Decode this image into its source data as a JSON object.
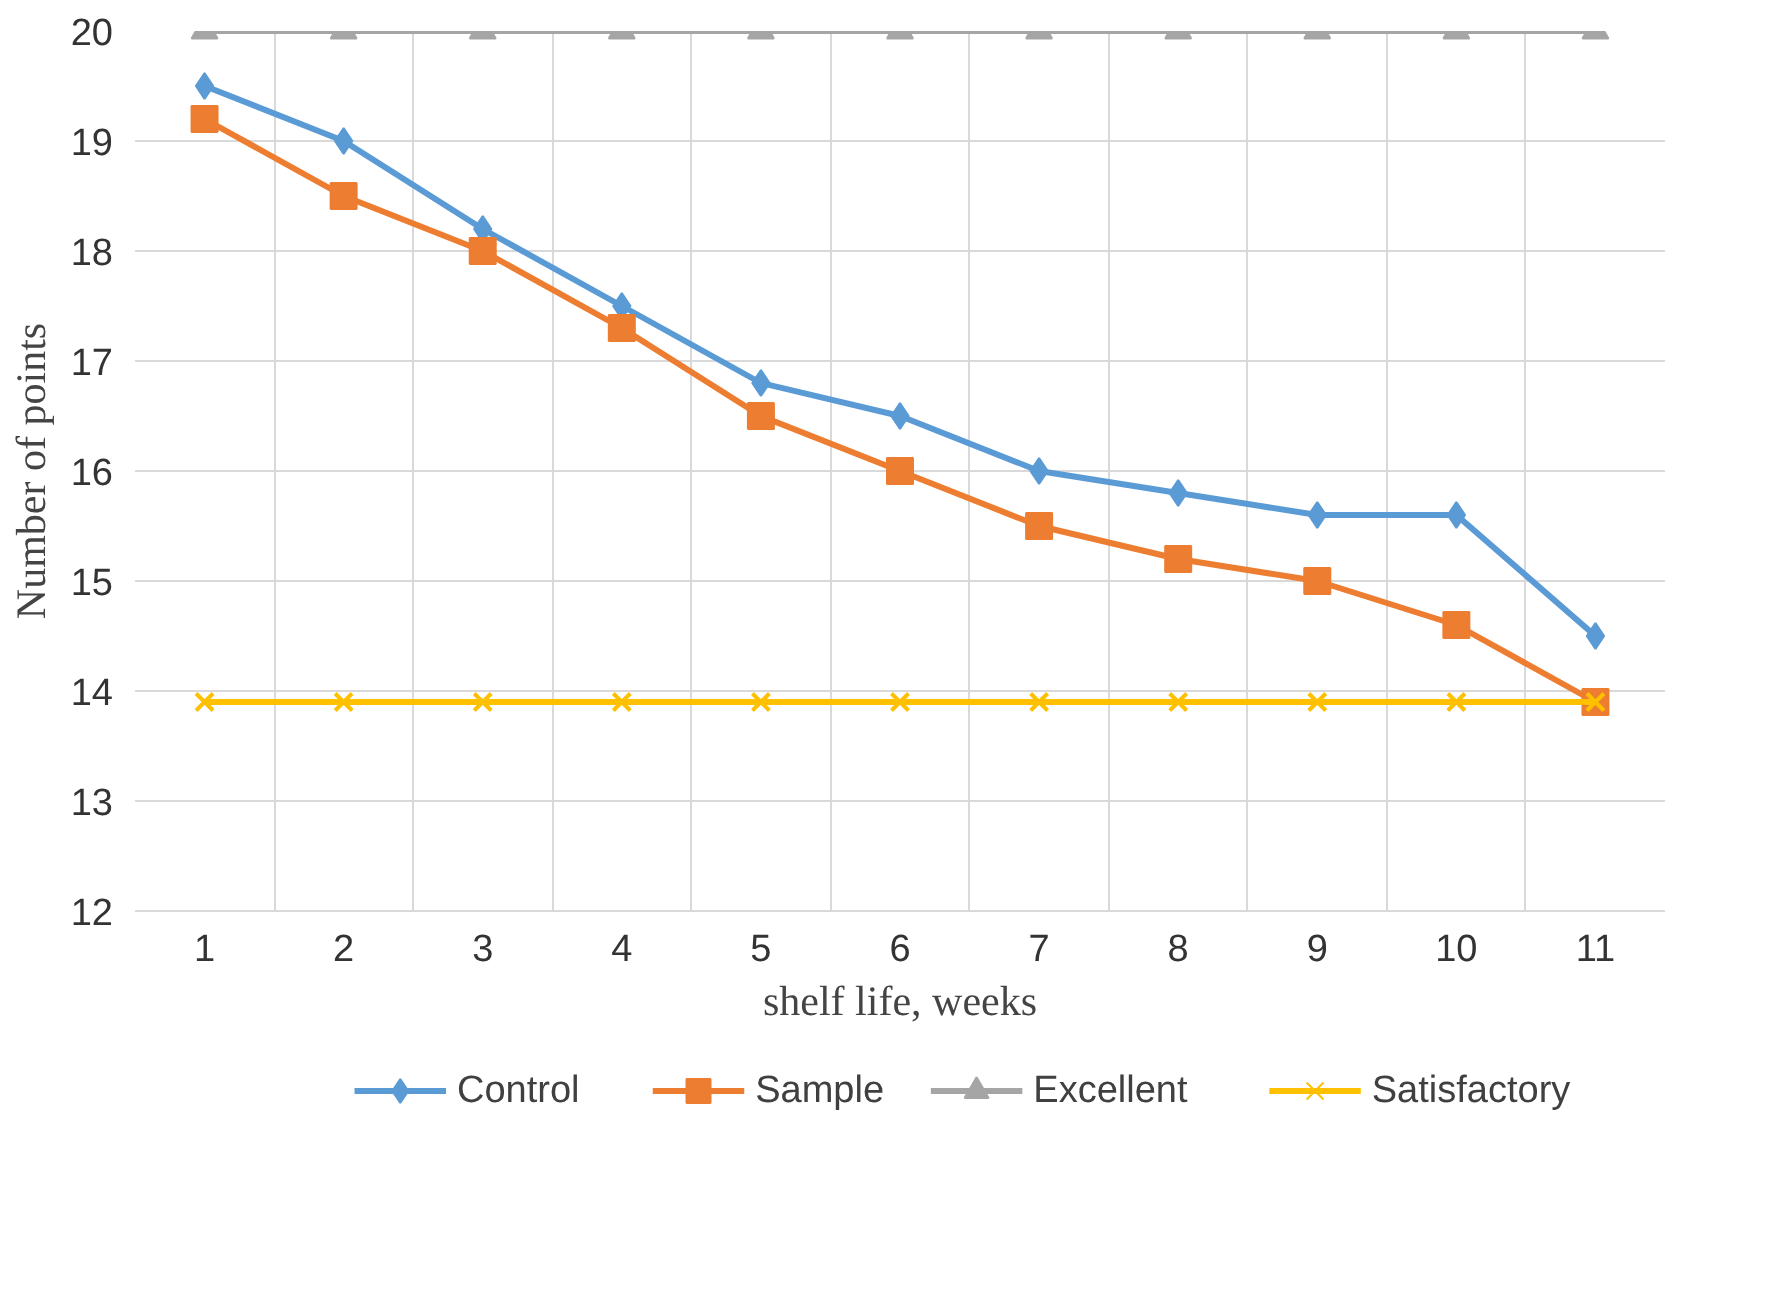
{
  "chart_data": {
    "type": "line",
    "xlabel": "shelf life, weeks",
    "ylabel": "Number of points",
    "categories": [
      "1",
      "2",
      "3",
      "4",
      "5",
      "6",
      "7",
      "8",
      "9",
      "10",
      "11"
    ],
    "series": [
      {
        "name": "Control",
        "color": "#5b9bd5",
        "marker": "diamond",
        "values": [
          19.5,
          19.0,
          18.2,
          17.5,
          16.8,
          16.5,
          16.0,
          15.8,
          15.6,
          15.6,
          14.5
        ]
      },
      {
        "name": "Sample",
        "color": "#ed7d31",
        "marker": "square",
        "values": [
          19.2,
          18.5,
          18.0,
          17.3,
          16.5,
          16.0,
          15.5,
          15.2,
          15.0,
          14.6,
          13.9
        ]
      },
      {
        "name": "Excellent",
        "color": "#a5a5a5",
        "marker": "triangle",
        "values": [
          20,
          20,
          20,
          20,
          20,
          20,
          20,
          20,
          20,
          20,
          20
        ]
      },
      {
        "name": "Satisfactory",
        "color": "#ffc000",
        "marker": "cross",
        "values": [
          13.9,
          13.9,
          13.9,
          13.9,
          13.9,
          13.9,
          13.9,
          13.9,
          13.9,
          13.9,
          13.9
        ]
      }
    ],
    "ylim": [
      12,
      20
    ],
    "yticks": [
      12,
      13,
      14,
      15,
      16,
      17,
      18,
      19,
      20
    ],
    "grid": true,
    "legend": "bottom",
    "line_style": "solid"
  }
}
